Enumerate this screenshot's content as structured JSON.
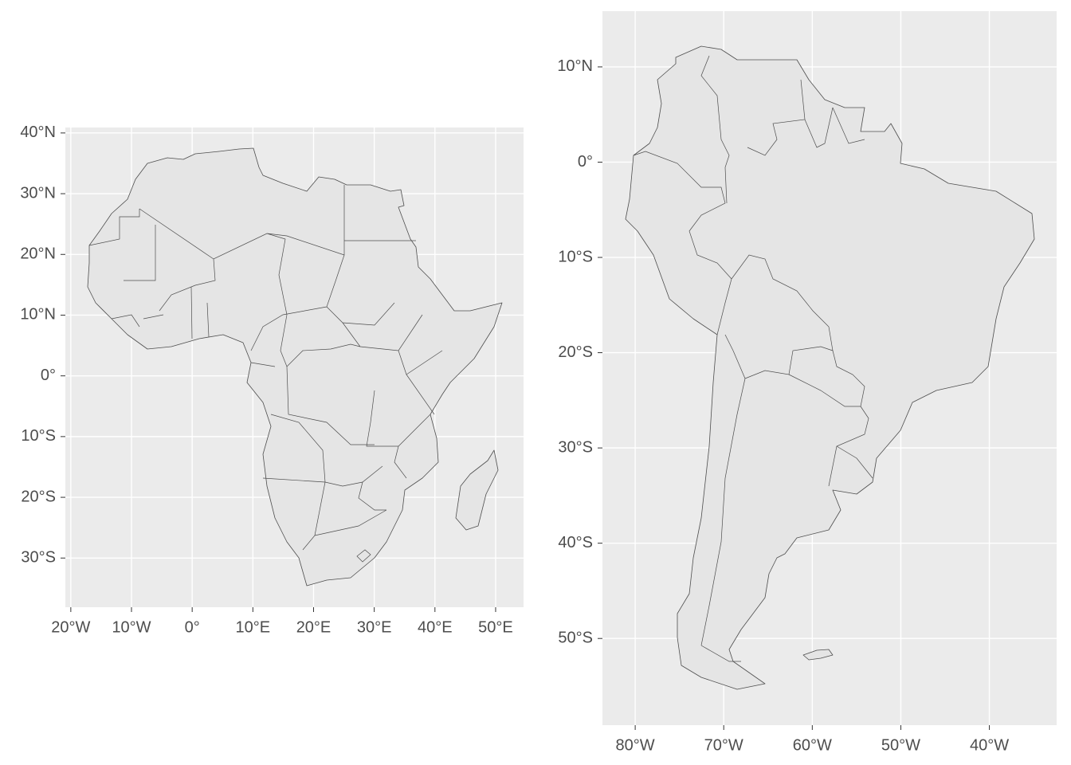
{
  "chart_data": [
    {
      "type": "map",
      "xlim": [
        -20.9,
        54.6
      ],
      "ylim": [
        -38.1,
        40.9
      ],
      "xticks": [
        {
          "value": -20,
          "label": "20°W"
        },
        {
          "value": -10,
          "label": "10°W"
        },
        {
          "value": 0,
          "label": "0°"
        },
        {
          "value": 10,
          "label": "10°E"
        },
        {
          "value": 20,
          "label": "20°E"
        },
        {
          "value": 30,
          "label": "30°E"
        },
        {
          "value": 40,
          "label": "40°E"
        },
        {
          "value": 50,
          "label": "50°E"
        }
      ],
      "yticks": [
        {
          "value": 40,
          "label": "40°N"
        },
        {
          "value": 30,
          "label": "30°N"
        },
        {
          "value": 20,
          "label": "20°N"
        },
        {
          "value": 10,
          "label": "10°N"
        },
        {
          "value": 0,
          "label": "0°"
        },
        {
          "value": -10,
          "label": "10°S"
        },
        {
          "value": -20,
          "label": "20°S"
        },
        {
          "value": -30,
          "label": "30°S"
        }
      ],
      "grid": true
    },
    {
      "type": "map",
      "xlim": [
        -83.7,
        -32.4
      ],
      "ylim": [
        -59.1,
        15.85
      ],
      "xticks": [
        {
          "value": -80,
          "label": "80°W"
        },
        {
          "value": -70,
          "label": "70°W"
        },
        {
          "value": -60,
          "label": "60°W"
        },
        {
          "value": -50,
          "label": "50°W"
        },
        {
          "value": -40,
          "label": "40°W"
        }
      ],
      "yticks": [
        {
          "value": 10,
          "label": "10°N"
        },
        {
          "value": 0,
          "label": "0°"
        },
        {
          "value": -10,
          "label": "10°S"
        },
        {
          "value": -20,
          "label": "20°S"
        },
        {
          "value": -30,
          "label": "30°S"
        },
        {
          "value": -40,
          "label": "40°S"
        },
        {
          "value": -50,
          "label": "50°S"
        }
      ],
      "grid": true
    }
  ]
}
